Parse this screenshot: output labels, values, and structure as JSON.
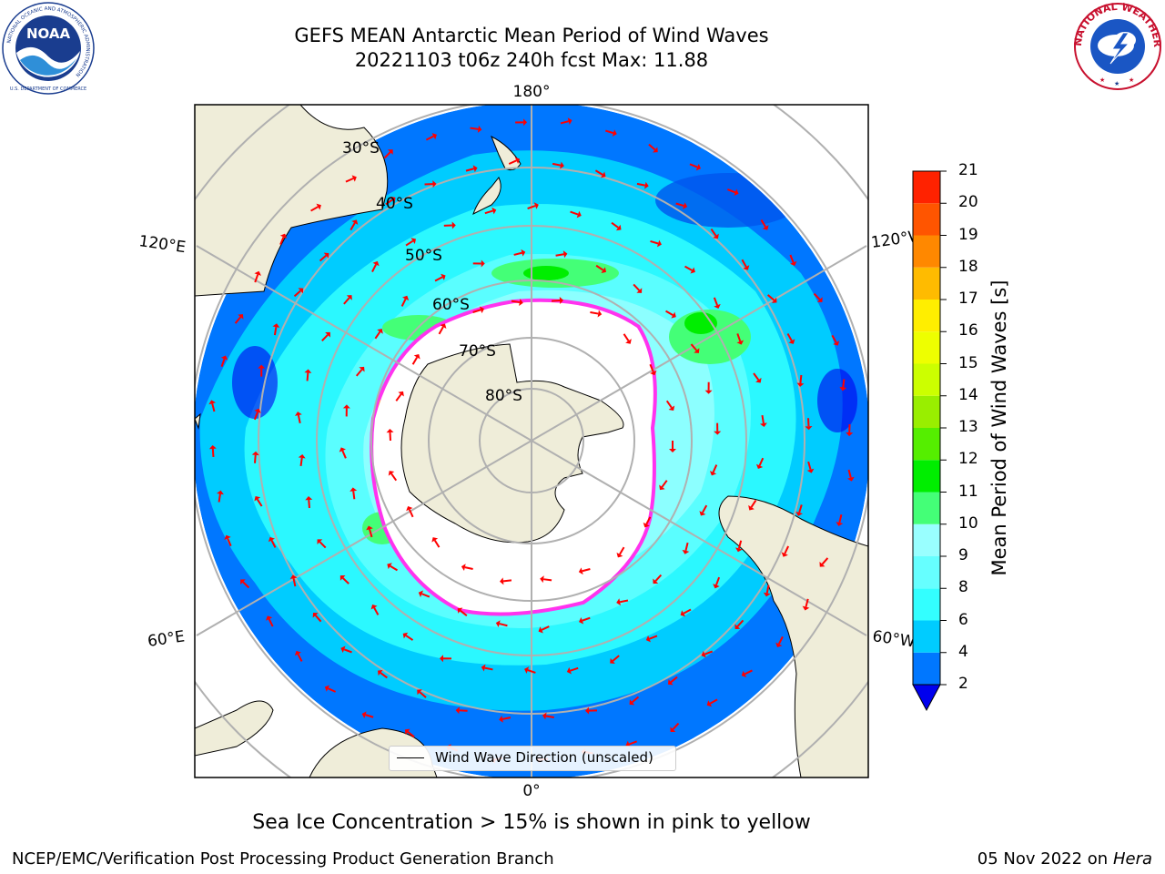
{
  "header": {
    "title_line1": "GEFS MEAN Antarctic Mean Period of Wind Waves",
    "title_line2": "20221103 t06z 240h fcst   Max: 11.88"
  },
  "logos": {
    "noaa_text": "NOAA",
    "noaa_ring_text": "NATIONAL OCEANIC AND ATMOSPHERIC ADMINISTRATION",
    "noaa_ring_bottom": "U.S. DEPARTMENT OF COMMERCE",
    "nws_ring_text": "NATIONAL WEATHER SERVICE"
  },
  "map": {
    "projection": "south-polar-stereographic",
    "longitude_labels": {
      "top": "180°",
      "bottom": "0°",
      "left_upper": "120°E",
      "left_lower": "60°E",
      "right_upper": "120°W",
      "right_lower": "60°W"
    },
    "latitude_labels": [
      "30°S",
      "40°S",
      "50°S",
      "60°S",
      "70°S",
      "80°S"
    ],
    "arrow_color": "#ff0000",
    "land_color": "#efedd9",
    "legend_entry": "Wind Wave Direction (unscaled)"
  },
  "colorbar": {
    "title": "Mean Period of Wind Waves [s]",
    "ticks": [
      "2",
      "4",
      "6",
      "8",
      "9",
      "10",
      "11",
      "12",
      "13",
      "14",
      "15",
      "16",
      "17",
      "18",
      "19",
      "20",
      "21"
    ],
    "colors": [
      "#0077ff",
      "#00ccff",
      "#33ffff",
      "#66ffff",
      "#99ffff",
      "#44ff77",
      "#00ee00",
      "#55ee00",
      "#99ee00",
      "#ccff00",
      "#eeff00",
      "#ffee00",
      "#ffbb00",
      "#ff8800",
      "#ff5500",
      "#ff2200"
    ],
    "under_color": "#0000ee"
  },
  "footnote": "Sea Ice Concentration > 15% is shown in pink to yellow",
  "credit_left": "NCEP/EMC/Verification Post Processing Product Generation Branch",
  "credit_date": "05 Nov 2022 on",
  "credit_host": "Hera"
}
